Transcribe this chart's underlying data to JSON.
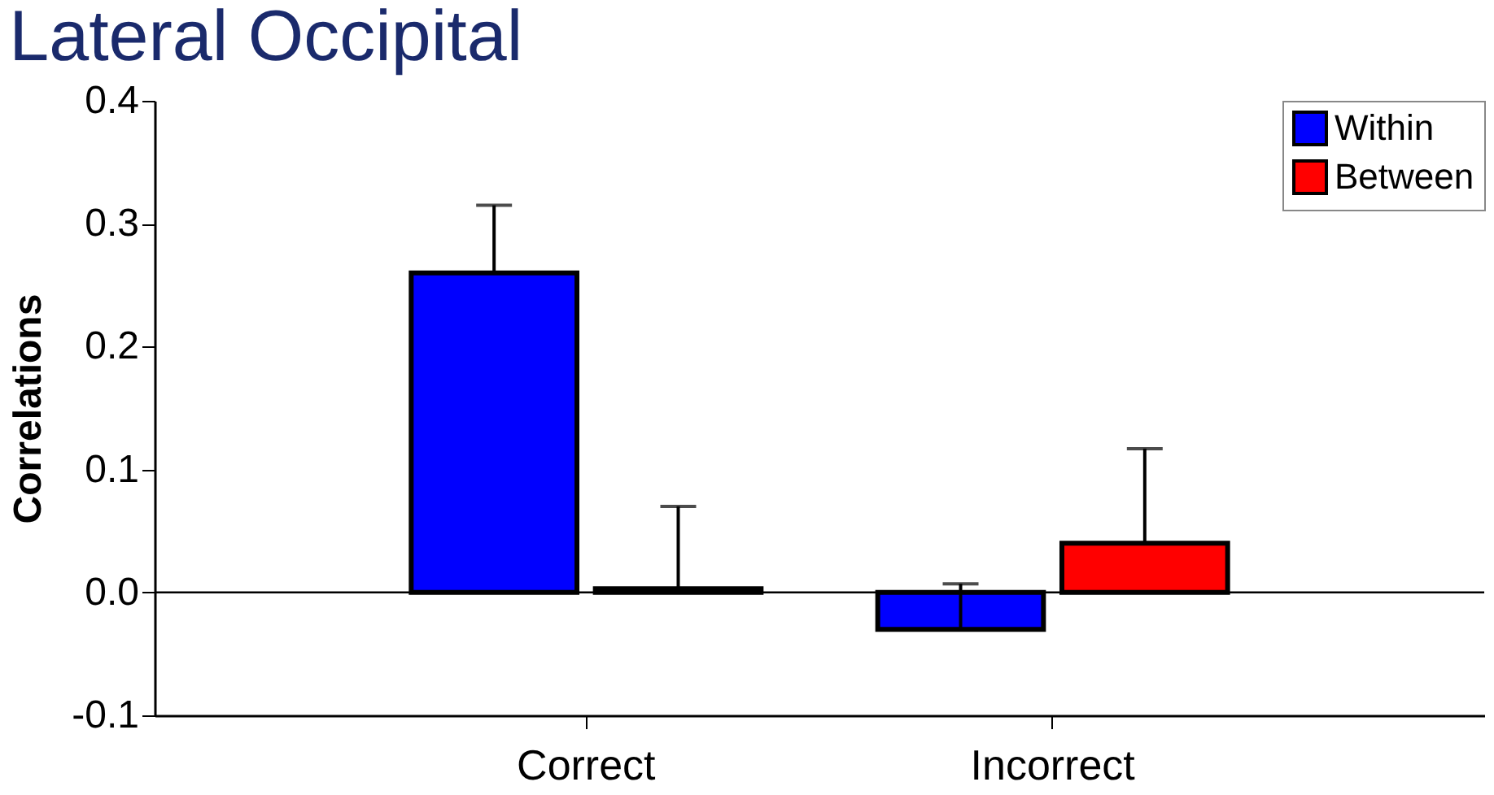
{
  "chart_data": {
    "type": "bar",
    "title": "Lateral Occipital",
    "ylabel": "Correlations",
    "categories": [
      "Correct",
      "Incorrect"
    ],
    "series": [
      {
        "name": "Within",
        "color": "#0000ff",
        "values": [
          0.26,
          -0.03
        ],
        "errors": [
          [
            0.26,
            0.315
          ],
          [
            -0.03,
            0.007
          ]
        ]
      },
      {
        "name": "Between",
        "color": "#ff0000",
        "values": [
          0.003,
          0.04
        ],
        "errors": [
          [
            0.003,
            0.07
          ],
          [
            0.04,
            0.117
          ]
        ]
      }
    ],
    "ylim": [
      -0.1,
      0.4
    ],
    "yticks": [
      {
        "value": -0.1,
        "label": "-0.1"
      },
      {
        "value": 0,
        "label": "0.0"
      },
      0.1,
      0.2,
      0.3,
      0.4
    ],
    "ref_lines": [
      {
        "axis": "y",
        "value": 0
      }
    ],
    "grid": false,
    "legend": "top right"
  }
}
